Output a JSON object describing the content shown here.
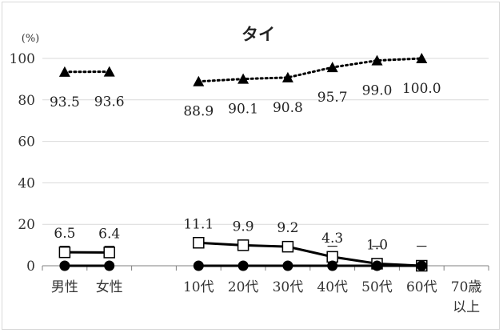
{
  "chart_data": {
    "type": "line",
    "title": "タイ",
    "ylabel": "(%)",
    "ylim": [
      0,
      100
    ],
    "yticks": [
      0,
      20,
      40,
      60,
      80,
      100
    ],
    "categories": [
      "男性",
      "女性",
      "",
      "10代",
      "20代",
      "30代",
      "40代",
      "50代",
      "60代",
      "70歳以上"
    ],
    "category_lines": [
      [
        "男性"
      ],
      [
        "女性"
      ],
      [
        ""
      ],
      [
        "10代"
      ],
      [
        "20代"
      ],
      [
        "30代"
      ],
      [
        "40代"
      ],
      [
        "50代"
      ],
      [
        "60代"
      ],
      [
        "70歳",
        "以上"
      ]
    ],
    "grid": true,
    "series": [
      {
        "key": "triangle",
        "marker": "triangle",
        "line": "dotted",
        "color": "#000000",
        "segments": [
          [
            0,
            1
          ],
          [
            3,
            8
          ]
        ],
        "values": [
          93.5,
          93.6,
          null,
          88.9,
          90.1,
          90.8,
          95.7,
          99.0,
          100.0,
          null
        ],
        "labels": [
          "93.5",
          "93.6",
          "",
          "88.9",
          "90.1",
          "90.8",
          "95.7",
          "99.0",
          "100.0",
          ""
        ]
      },
      {
        "key": "square",
        "marker": "square",
        "line": "solid",
        "color": "#000000",
        "segments": [
          [
            0,
            1
          ],
          [
            3,
            8
          ]
        ],
        "values": [
          6.5,
          6.4,
          null,
          11.1,
          9.9,
          9.2,
          4.3,
          1.0,
          0.0,
          null
        ],
        "labels": [
          "6.5",
          "6.4",
          "",
          "11.1",
          "9.9",
          "9.2",
          "4.3",
          "1.0",
          "",
          ""
        ]
      },
      {
        "key": "circle",
        "marker": "circle",
        "line": "solid",
        "color": "#000000",
        "segments": [
          [
            0,
            1
          ],
          [
            3,
            8
          ]
        ],
        "values": [
          0,
          0,
          null,
          0,
          0,
          0,
          0,
          0,
          0,
          null
        ],
        "labels": [
          "",
          "",
          "",
          "",
          "",
          "",
          "",
          "",
          "",
          ""
        ]
      }
    ],
    "dash_labels": [
      "－",
      "－",
      "",
      "－",
      "－",
      "－",
      "－",
      "－",
      "－",
      ""
    ]
  }
}
